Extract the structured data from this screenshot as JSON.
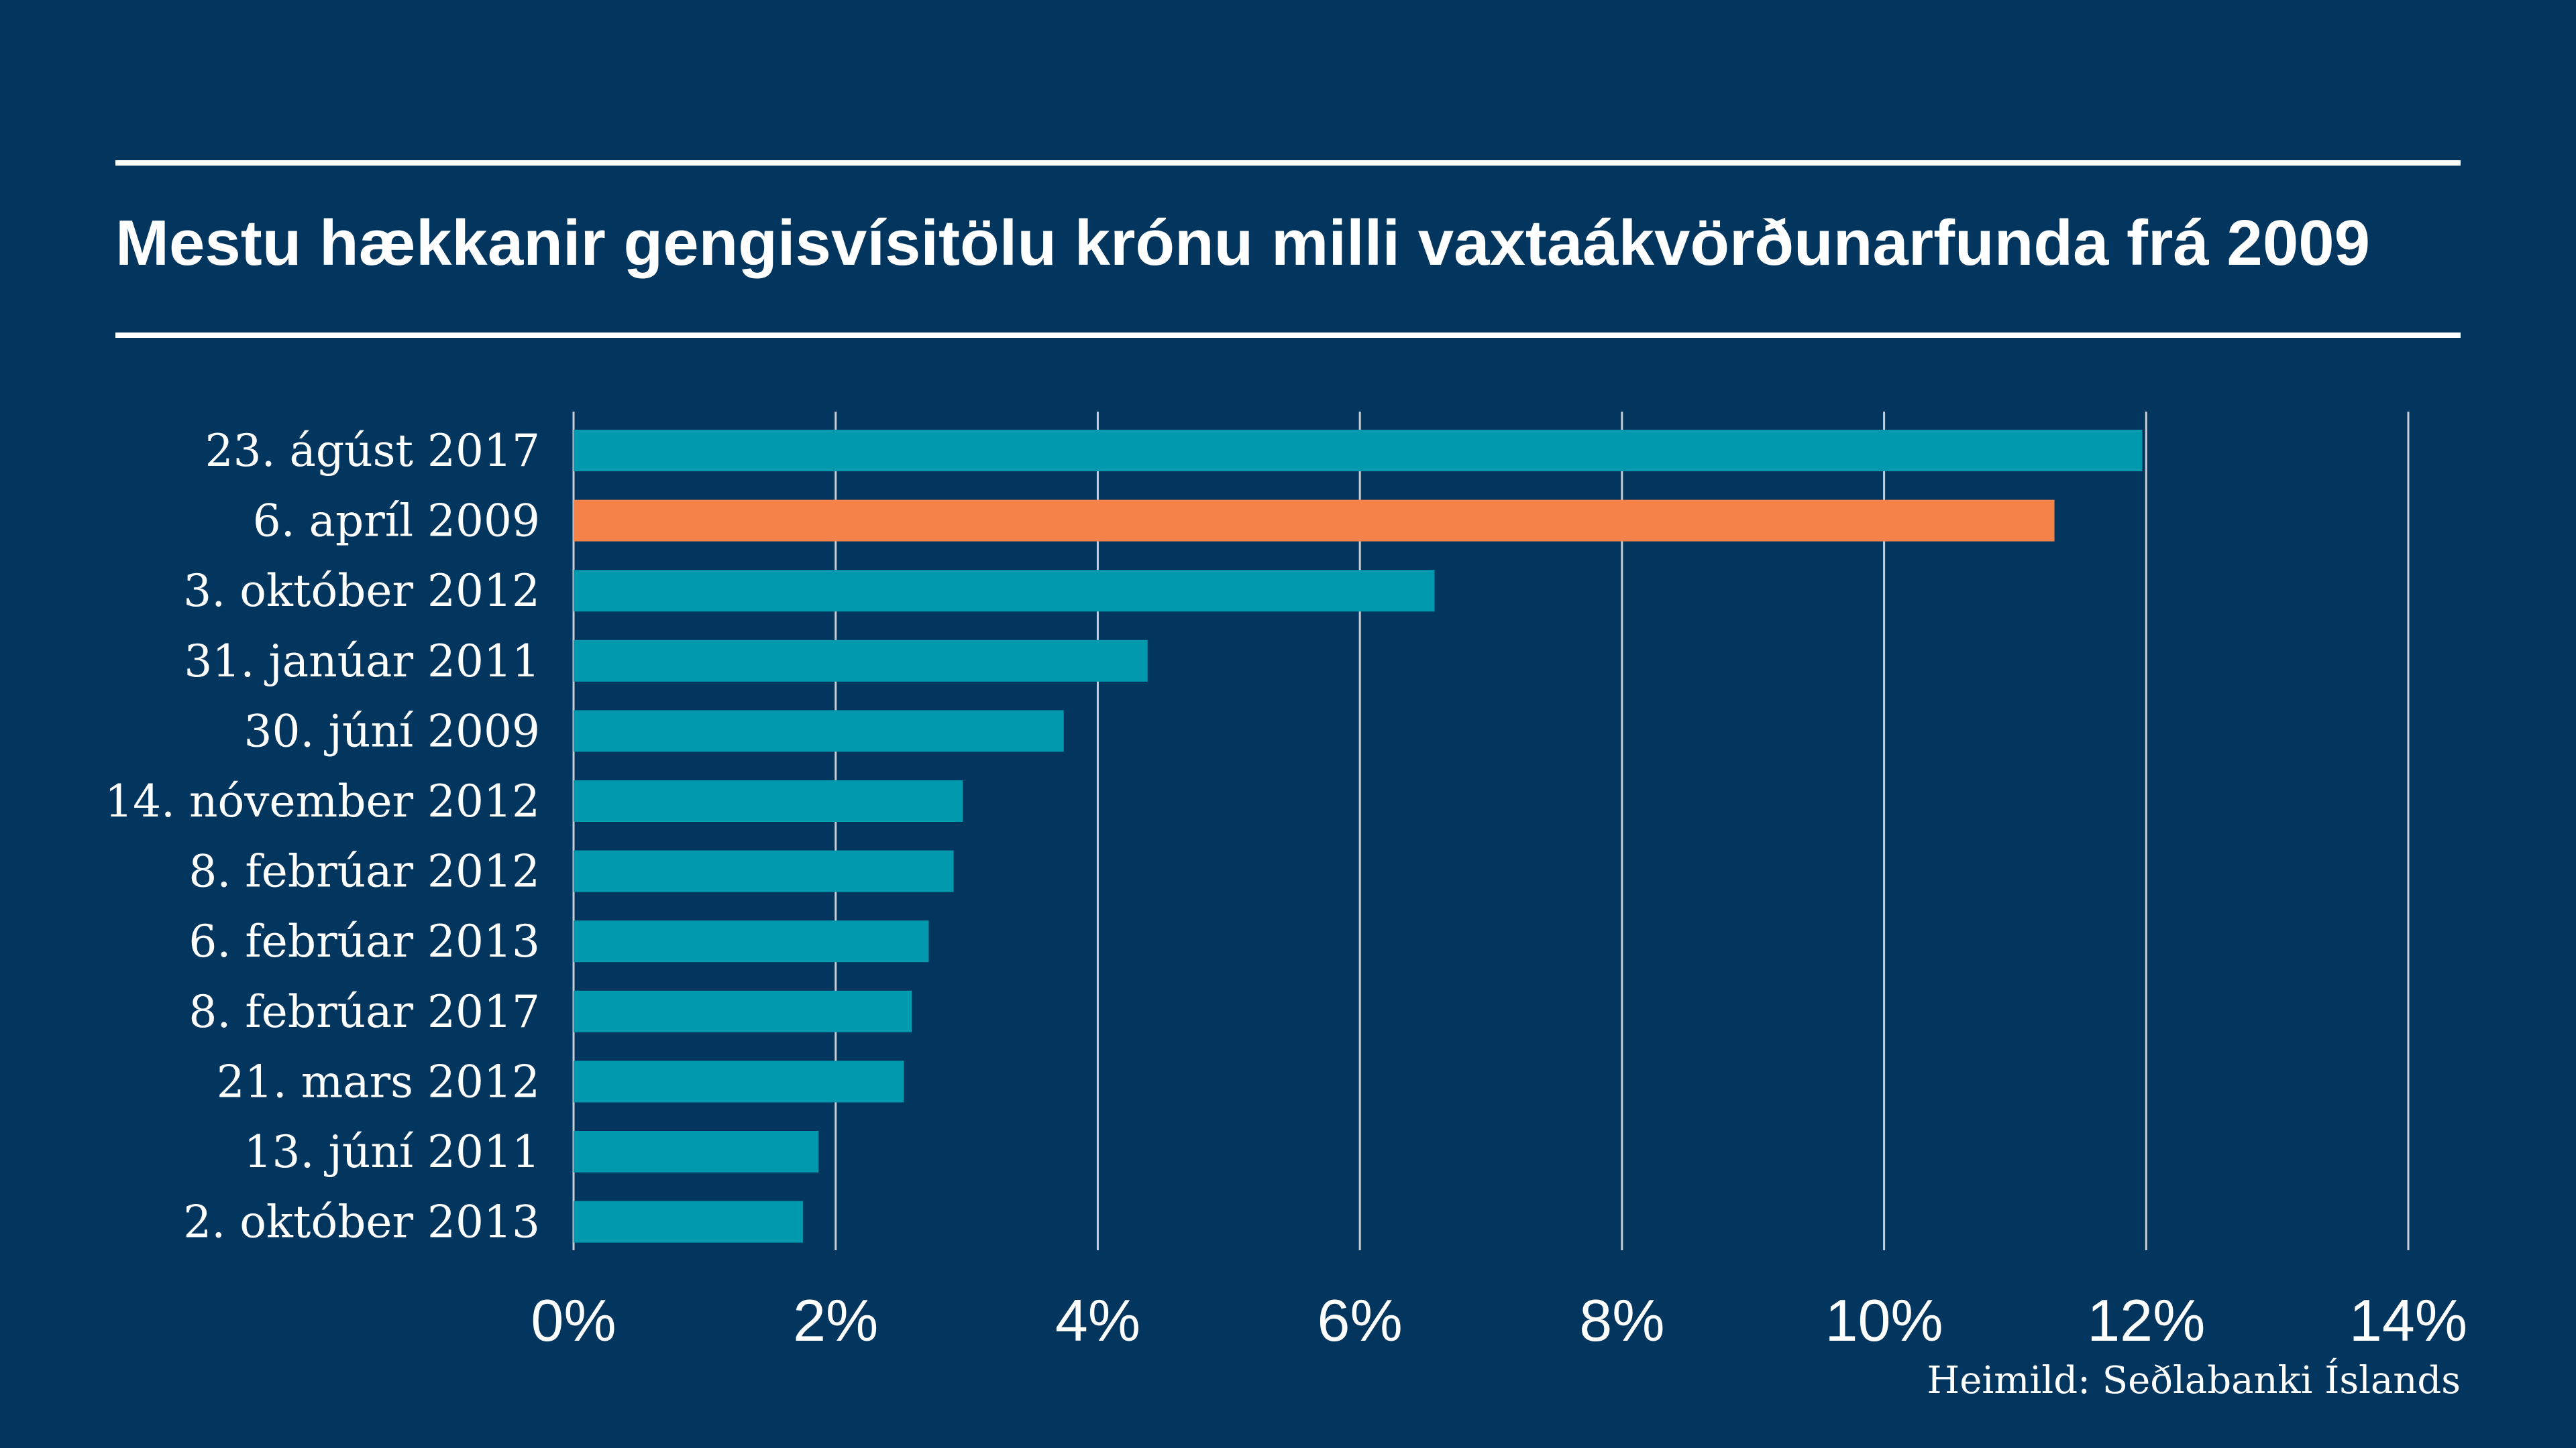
{
  "title": "Mestu hækkanir gengisvísitölu krónu milli vaxtaákvörðunarfunda frá 2009",
  "source": "Heimild: Seðlabanki Íslands",
  "colors": {
    "background": "#03365f",
    "bar": "#0099ae",
    "highlight": "#f58349",
    "grid": "#c7ced8",
    "text": "#ffffff"
  },
  "chart_data": {
    "type": "bar",
    "orientation": "horizontal",
    "categories": [
      "23. ágúst 2017",
      "6. apríl 2009",
      "3. október 2012",
      "31. janúar 2011",
      "30. júní 2009",
      "14. nóvember 2012",
      "8. febrúar 2012",
      "6. febrúar 2013",
      "8. febrúar 2017",
      "21. mars 2012",
      "13. júní 2011",
      "2. október 2013"
    ],
    "values": [
      11.97,
      11.3,
      6.57,
      4.38,
      3.74,
      2.97,
      2.9,
      2.71,
      2.58,
      2.52,
      1.87,
      1.75
    ],
    "highlight_index": 1,
    "xlim": [
      0,
      14
    ],
    "xticks": [
      0,
      2,
      4,
      6,
      8,
      10,
      12,
      14
    ],
    "xtick_labels": [
      "0%",
      "2%",
      "4%",
      "6%",
      "8%",
      "10%",
      "12%",
      "14%"
    ],
    "grid": "vertical",
    "legend": "none"
  }
}
